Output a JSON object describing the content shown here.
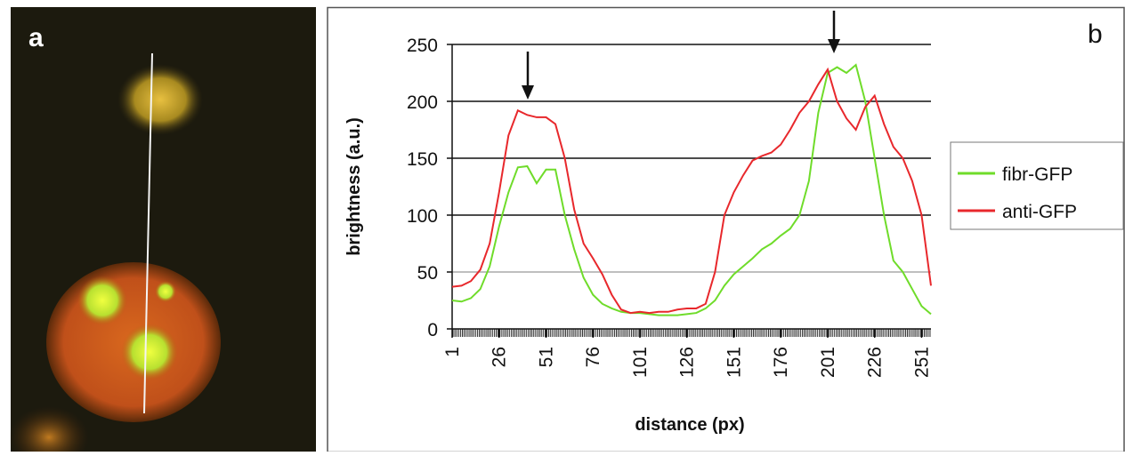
{
  "image_panel": {
    "label": "a"
  },
  "chart_data": {
    "type": "line",
    "annotations": [
      "b"
    ],
    "x_label": "distance (px)",
    "y_label": "brightness (a.u.)",
    "x": [
      1,
      6,
      11,
      16,
      21,
      26,
      31,
      36,
      41,
      46,
      51,
      56,
      61,
      66,
      71,
      76,
      81,
      86,
      91,
      96,
      101,
      106,
      111,
      116,
      121,
      126,
      131,
      136,
      141,
      146,
      151,
      156,
      161,
      166,
      171,
      176,
      181,
      186,
      191,
      196,
      201,
      206,
      211,
      216,
      221,
      226,
      231,
      236,
      241,
      246,
      251,
      256
    ],
    "series": [
      {
        "name": "fibr-GFP",
        "color": "#6fdc2a",
        "values": [
          25,
          24,
          27,
          35,
          55,
          90,
          120,
          142,
          143,
          128,
          140,
          140,
          100,
          70,
          45,
          30,
          22,
          18,
          15,
          14,
          14,
          13,
          12,
          12,
          12,
          13,
          14,
          18,
          25,
          38,
          48,
          55,
          62,
          70,
          75,
          82,
          88,
          100,
          130,
          190,
          225,
          230,
          225,
          232,
          200,
          150,
          100,
          60,
          50,
          35,
          20,
          13
        ]
      },
      {
        "name": "anti-GFP",
        "color": "#e8282c",
        "values": [
          37,
          38,
          42,
          52,
          75,
          120,
          170,
          192,
          188,
          186,
          186,
          180,
          150,
          105,
          75,
          62,
          48,
          30,
          17,
          14,
          15,
          14,
          15,
          15,
          17,
          18,
          18,
          22,
          50,
          100,
          120,
          135,
          148,
          152,
          155,
          162,
          175,
          190,
          200,
          215,
          228,
          200,
          185,
          175,
          195,
          205,
          180,
          160,
          150,
          130,
          100,
          38
        ]
      }
    ],
    "xlim": [
      1,
      256
    ],
    "xticks": [
      1,
      26,
      51,
      76,
      101,
      126,
      151,
      176,
      201,
      226,
      251
    ],
    "ylim": [
      0,
      250
    ],
    "yticks": [
      0,
      50,
      100,
      150,
      200,
      250
    ],
    "grid": true,
    "legend": "right"
  }
}
